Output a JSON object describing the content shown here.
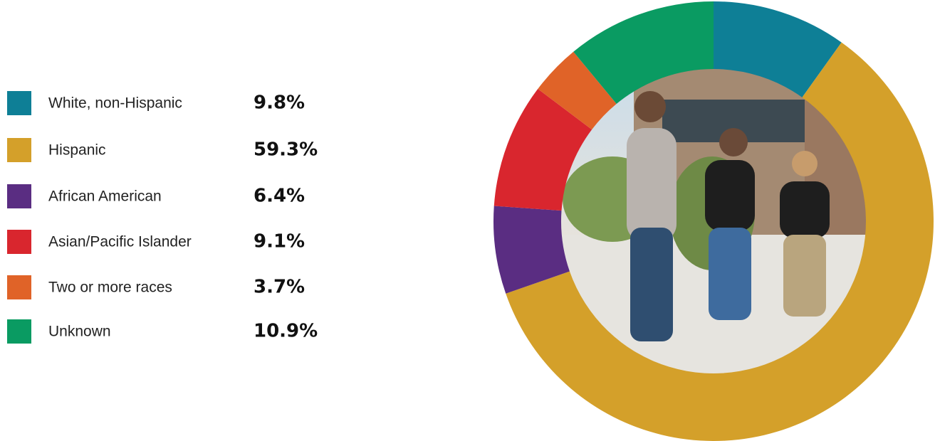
{
  "chart_data": {
    "type": "pie",
    "categories": [
      "White, non-Hispanic",
      "Hispanic",
      "African American",
      "Asian/Pacific Islander",
      "Two or more races",
      "Unknown"
    ],
    "values": [
      9.8,
      59.3,
      6.4,
      9.1,
      3.7,
      10.9
    ],
    "value_labels": [
      "9.8%",
      "59.3%",
      "6.4%",
      "9.1%",
      "3.7%",
      "10.9%"
    ],
    "colors": [
      "#0e7f96",
      "#d4a02a",
      "#5a2d82",
      "#d9262e",
      "#e06328",
      "#0a9b62"
    ]
  }
}
